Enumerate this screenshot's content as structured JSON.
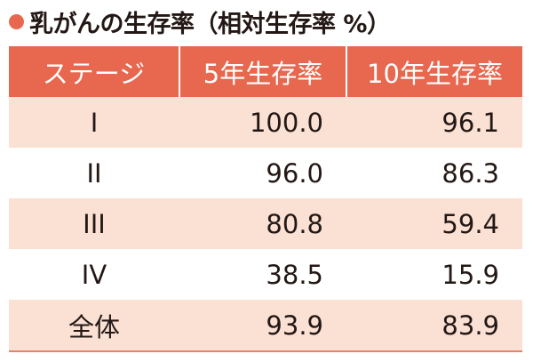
{
  "title": "乳がんの生存率（相対生存率 %）",
  "colors": {
    "accent": "#e8674f",
    "header_bg": "#e8674f",
    "row_stripe": "#fbe0d4"
  },
  "chart_data": {
    "type": "table",
    "title": "乳がんの生存率（相対生存率 %）",
    "columns": [
      "ステージ",
      "5年生存率",
      "10年生存率"
    ],
    "rows": [
      {
        "stage": "I",
        "five_year": "100.0",
        "ten_year": "96.1"
      },
      {
        "stage": "II",
        "five_year": "96.0",
        "ten_year": "86.3"
      },
      {
        "stage": "III",
        "five_year": "80.8",
        "ten_year": "59.4"
      },
      {
        "stage": "IV",
        "five_year": "38.5",
        "ten_year": "15.9"
      },
      {
        "stage": "全体",
        "five_year": "93.9",
        "ten_year": "83.9"
      }
    ]
  }
}
